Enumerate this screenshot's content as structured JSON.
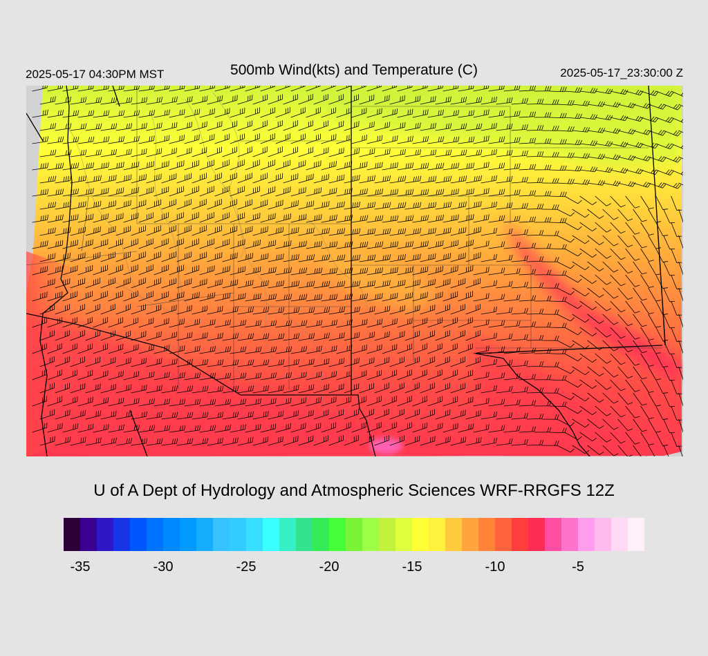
{
  "header": {
    "local_time": "2025-05-17 04:30PM MST",
    "title": "500mb Wind(kts) and Temperature (C)",
    "utc_time": "2025-05-17_23:30:00 Z"
  },
  "credit": "U of A Dept of Hydrology and Atmospheric Sciences WRF-RRGFS 12Z",
  "map": {
    "field": "500mb temperature (C) with wind barbs (kts)",
    "background_color": "#d3d3d3",
    "temperature_pattern": [
      {
        "region": "north (Idaho, Montana, Wyoming, Dakotas)",
        "temp_c": -18,
        "color": "#d4f53a"
      },
      {
        "region": "north-central (Wyoming, Nebraska)",
        "temp_c": -16,
        "color": "#ffff3a"
      },
      {
        "region": "central (Utah, Colorado, Nevada)",
        "temp_c": -13,
        "color": "#ffb23d"
      },
      {
        "region": "south-west (California, Arizona, Nevada)",
        "temp_c": -10,
        "color": "#ff6f4a"
      },
      {
        "region": "far south (Arizona, New Mexico, California)",
        "temp_c": -8,
        "color": "#ff3d50"
      },
      {
        "region": "band Kansas-Oklahoma-Texas panhandle",
        "temp_c": -7,
        "color": "#ff3060"
      },
      {
        "region": "northern Mexico spot",
        "temp_c": -5,
        "color": "#ff66bb"
      }
    ],
    "wind_flow": "west-southwesterly across the West, northwesterly over the Plains"
  },
  "colorbar": {
    "colors": [
      "#2e0038",
      "#3a0090",
      "#2e17c6",
      "#1734e6",
      "#0056ff",
      "#0073ff",
      "#0088ff",
      "#0099ff",
      "#17adff",
      "#36c1ff",
      "#33ccff",
      "#38deff",
      "#39ffff",
      "#36f0c8",
      "#33e38e",
      "#36eb58",
      "#44ff38",
      "#7af237",
      "#9dff45",
      "#c1f23d",
      "#deff3d",
      "#ffff36",
      "#fff23d",
      "#ffcc3d",
      "#ffa53d",
      "#ff8438",
      "#ff633c",
      "#ff3d3d",
      "#ff2d55",
      "#ff4da2",
      "#ff73cc",
      "#ff9cee",
      "#ffbbee",
      "#ffd9f6",
      "#fff0fb"
    ],
    "ticks": [
      {
        "label": "-35",
        "index": 1
      },
      {
        "label": "-30",
        "index": 6
      },
      {
        "label": "-25",
        "index": 11
      },
      {
        "label": "-20",
        "index": 16
      },
      {
        "label": "-15",
        "index": 21
      },
      {
        "label": "-10",
        "index": 26
      },
      {
        "label": "-5",
        "index": 31
      }
    ]
  }
}
